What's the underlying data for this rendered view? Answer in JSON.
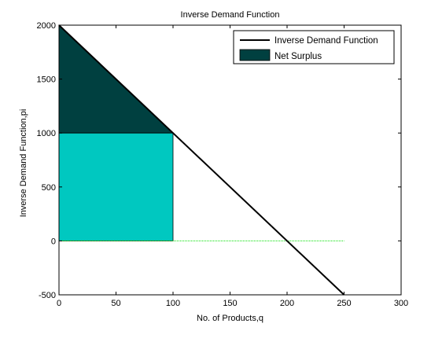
{
  "chart_data": {
    "type": "line",
    "title": "Inverse Demand Function",
    "xlabel": "No. of Products,q",
    "ylabel": "Inverse Demand Function,pi",
    "xlim": [
      0,
      300
    ],
    "ylim": [
      -500,
      2000
    ],
    "x_ticks": [
      0,
      50,
      100,
      150,
      200,
      250,
      300
    ],
    "y_ticks": [
      -500,
      0,
      500,
      1000,
      1500,
      2000
    ],
    "x_tick_labels": [
      "0",
      "50",
      "100",
      "150",
      "200",
      "250",
      "300"
    ],
    "y_tick_labels": [
      "-500",
      "0",
      "500",
      "1000",
      "1500",
      "2000"
    ],
    "grid": false,
    "legend_position": "top-right",
    "series": [
      {
        "name": "Inverse Demand Function",
        "kind": "line",
        "color": "#000000",
        "x": [
          0,
          250
        ],
        "y": [
          2000,
          -500
        ]
      },
      {
        "name": "Net Surplus",
        "kind": "area",
        "color": "#004040",
        "x": [
          0,
          100,
          100,
          0
        ],
        "y": [
          2000,
          1000,
          1000,
          1000
        ]
      },
      {
        "kind": "area",
        "color": "#00C8C0",
        "x": [
          0,
          100,
          100,
          0
        ],
        "y": [
          1000,
          1000,
          0,
          0
        ]
      },
      {
        "kind": "line",
        "color": "#00E000",
        "style": "dotted",
        "x": [
          0,
          250
        ],
        "y": [
          0,
          0
        ]
      }
    ]
  }
}
